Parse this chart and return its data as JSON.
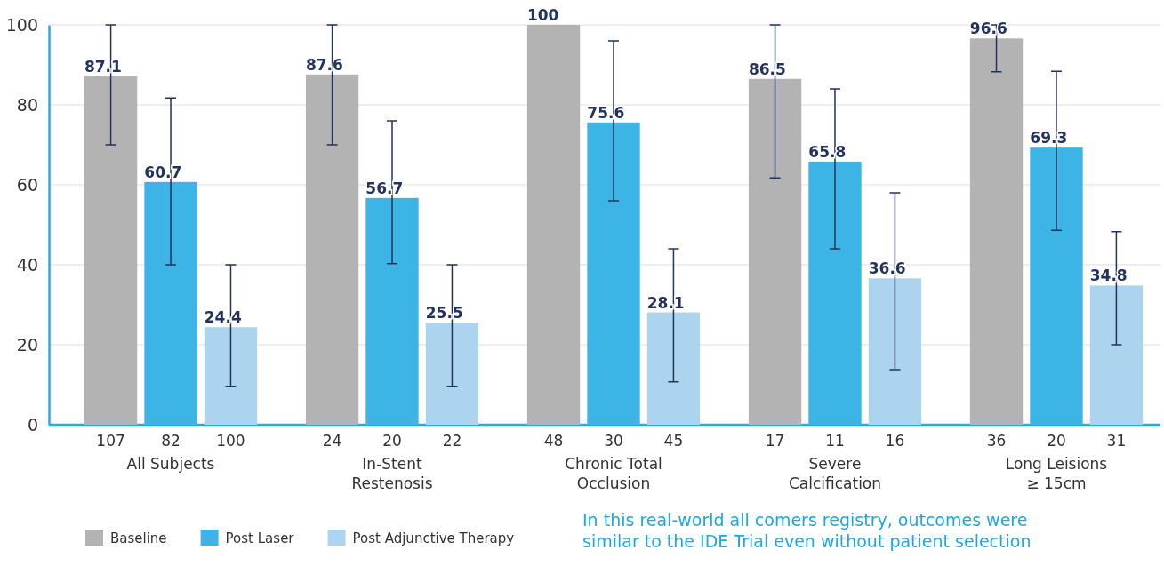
{
  "chart_data": {
    "type": "bar",
    "categories": [
      "All Subjects",
      "In-Stent\nRestenosis",
      "Chronic Total\nOcclusion",
      "Severe\nCalcification",
      "Long Leisions\n≥ 15cm"
    ],
    "series": [
      {
        "name": "Baseline",
        "color": "#b3b3b4",
        "values": [
          87.1,
          87.6,
          100,
          86.5,
          96.6
        ],
        "errors": [
          [
            70,
            100
          ],
          [
            70,
            100
          ],
          null,
          [
            61.7,
            100
          ],
          [
            88.3,
            100
          ]
        ]
      },
      {
        "name": "Post Laser",
        "color": "#3cb4e5",
        "values": [
          60.7,
          56.7,
          75.6,
          65.8,
          69.3
        ],
        "errors": [
          [
            40,
            81.7
          ],
          [
            40.3,
            76
          ],
          [
            56,
            96
          ],
          [
            44,
            84
          ],
          [
            48.6,
            88.4
          ]
        ]
      },
      {
        "name": "Post Adjunctive Therapy",
        "color": "#acd4ef",
        "values": [
          24.4,
          25.5,
          28.1,
          36.6,
          34.8
        ],
        "errors": [
          [
            9.6,
            40
          ],
          [
            9.6,
            40
          ],
          [
            10.7,
            44
          ],
          [
            13.8,
            58
          ],
          [
            20,
            48.3
          ]
        ]
      }
    ],
    "ylim": [
      0,
      100
    ],
    "yticks": [
      0,
      20,
      40,
      60,
      80,
      100
    ],
    "grid": "y",
    "legend": "bottom left",
    "data_labels": true,
    "annotations": [
      "107",
      "82",
      "100",
      "24",
      "20",
      "22",
      "48",
      "30",
      "45",
      "17",
      "11",
      "16",
      "36",
      "20",
      "31",
      "In this real-world all comers registry, outcomes were similar to the IDE Trial even without patient selection"
    ]
  }
}
